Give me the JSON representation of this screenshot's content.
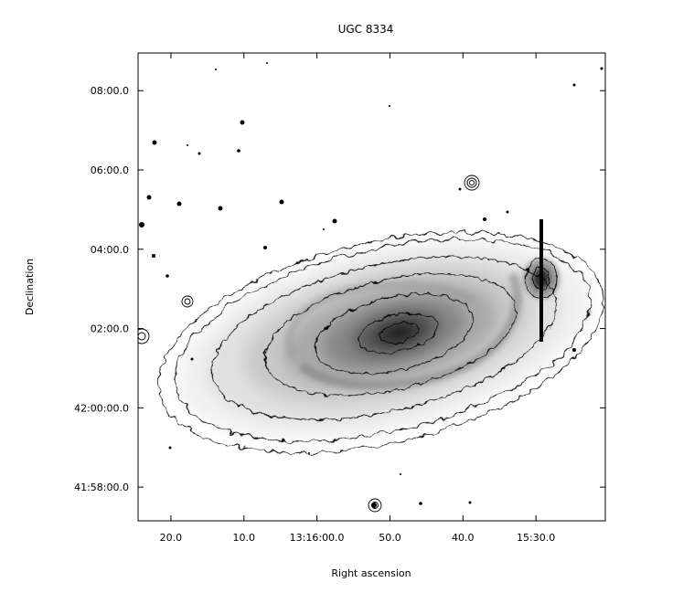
{
  "chart_data": {
    "type": "heatmap",
    "title": "UGC 8334",
    "xlabel": "Right ascension",
    "ylabel": "Declination",
    "x_axis": {
      "ticks": [
        {
          "label": "20.0",
          "seconds": 20
        },
        {
          "label": "10.0",
          "seconds": 10
        },
        {
          "label": "13:16:00.0",
          "seconds": 0
        },
        {
          "label": "50.0",
          "seconds": -10
        },
        {
          "label": "40.0",
          "seconds": -20
        },
        {
          "label": "15:30.0",
          "seconds": -30
        }
      ],
      "range_seconds_offset": [
        24.5,
        -39.5
      ],
      "direction": "RA decreasing to the right"
    },
    "y_axis": {
      "ticks": [
        {
          "label": "08:00.0",
          "arcmin_offset": 8
        },
        {
          "label": "06:00.0",
          "arcmin_offset": 6
        },
        {
          "label": "04:00.0",
          "arcmin_offset": 4
        },
        {
          "label": "02:00.0",
          "arcmin_offset": 2
        },
        {
          "label": "42:00:00.0",
          "arcmin_offset": 0
        },
        {
          "label": "41:58:00.0",
          "arcmin_offset": -2
        }
      ],
      "range_arcmin_offset": [
        -2.85,
        8.95
      ]
    },
    "image": "grayscale galaxy image with isophote contours",
    "colormap": "inverted grayscale",
    "grid": false,
    "legend": "none"
  }
}
